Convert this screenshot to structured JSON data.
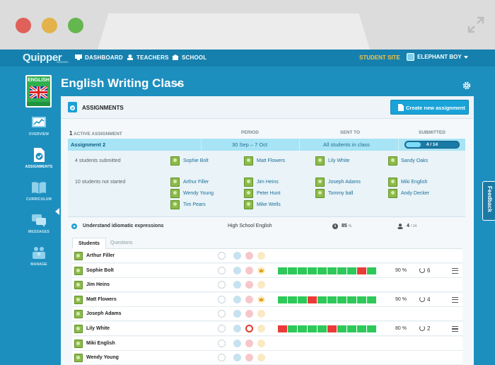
{
  "app": {
    "logo": "Quipper",
    "logo_sub": "SCHOOL",
    "nav": [
      "DASHBOARD",
      "TEACHERS",
      "SCHOOL"
    ],
    "student_site": "STUDENT SITE",
    "user_name": "ELEPHANT BOY"
  },
  "sidebar": {
    "subject": "ENGLISH",
    "items": [
      {
        "label": "OVERVIEW",
        "icon": "overview-icon"
      },
      {
        "label": "ASSIGNMENTS",
        "icon": "assignments-icon"
      },
      {
        "label": "CURRICULUM",
        "icon": "curriculum-icon"
      },
      {
        "label": "MESSAGES",
        "icon": "messages-icon"
      },
      {
        "label": "MANAGE",
        "icon": "manage-icon"
      }
    ]
  },
  "class_title": "English Writing Class",
  "feedback": "Feedback",
  "panel": {
    "title": "ASSIGNMENTS",
    "create_button": "Create new assignment",
    "active_count": "1",
    "active_label": "ACTIVE ASSIGNMENT",
    "col_period": "PERIOD",
    "col_sent_to": "SENT TO",
    "col_submitted": "SUBMITTED"
  },
  "assignment": {
    "name": "Assignment 2",
    "period": "30 Sep – 7 Oct",
    "sent_to": "All students in class",
    "submitted": "4 / 14",
    "submitted_fraction": 0.29
  },
  "submitted_group": {
    "label": "4 students submitted",
    "students": [
      "Sophie Bolt",
      "Matt Flowers",
      "Lily White",
      "Sandy Oaks"
    ]
  },
  "not_started_group": {
    "label": "10 students not started",
    "students": [
      "Arthur Filler",
      "Jim Heins",
      "Joseph Adams",
      "Miki English",
      "Wendy Young",
      "Peter Hunt",
      "Tommy ball",
      "Andy Decker",
      "Tim Pears",
      "Mike Wells"
    ]
  },
  "objective": {
    "title": "Understand idiomatic expressions",
    "course": "High School English",
    "score": "85",
    "score_unit": "%",
    "completed": "4",
    "completed_total": "/ 14"
  },
  "tabs": [
    "Students",
    "Questions"
  ],
  "rows": [
    {
      "name": "Arthur Filler",
      "submitted": false
    },
    {
      "name": "Sophie Bolt",
      "submitted": true,
      "crown": true,
      "percent": "90 %",
      "attempts": "6",
      "segments": [
        1,
        1,
        1,
        1,
        1,
        1,
        1,
        1,
        0,
        1
      ]
    },
    {
      "name": "Jim Heins",
      "submitted": false
    },
    {
      "name": "Matt Flowers",
      "submitted": true,
      "crown": true,
      "percent": "90 %",
      "attempts": "4",
      "segments": [
        1,
        1,
        1,
        0,
        1,
        1,
        1,
        1,
        1,
        1
      ]
    },
    {
      "name": "Joseph Adams",
      "submitted": false
    },
    {
      "name": "Lily White",
      "submitted": true,
      "alert": true,
      "percent": "80 %",
      "attempts": "2",
      "segments": [
        0,
        1,
        1,
        1,
        1,
        0,
        1,
        1,
        1,
        1
      ]
    },
    {
      "name": "Miki English",
      "submitted": false
    },
    {
      "name": "Wendy Young",
      "submitted": false
    }
  ],
  "colors": {
    "brand_blue": "#1d8fbf",
    "correct": "#2ec95a",
    "wrong": "#ea3b39",
    "accent_yellow": "#f7c23e"
  }
}
